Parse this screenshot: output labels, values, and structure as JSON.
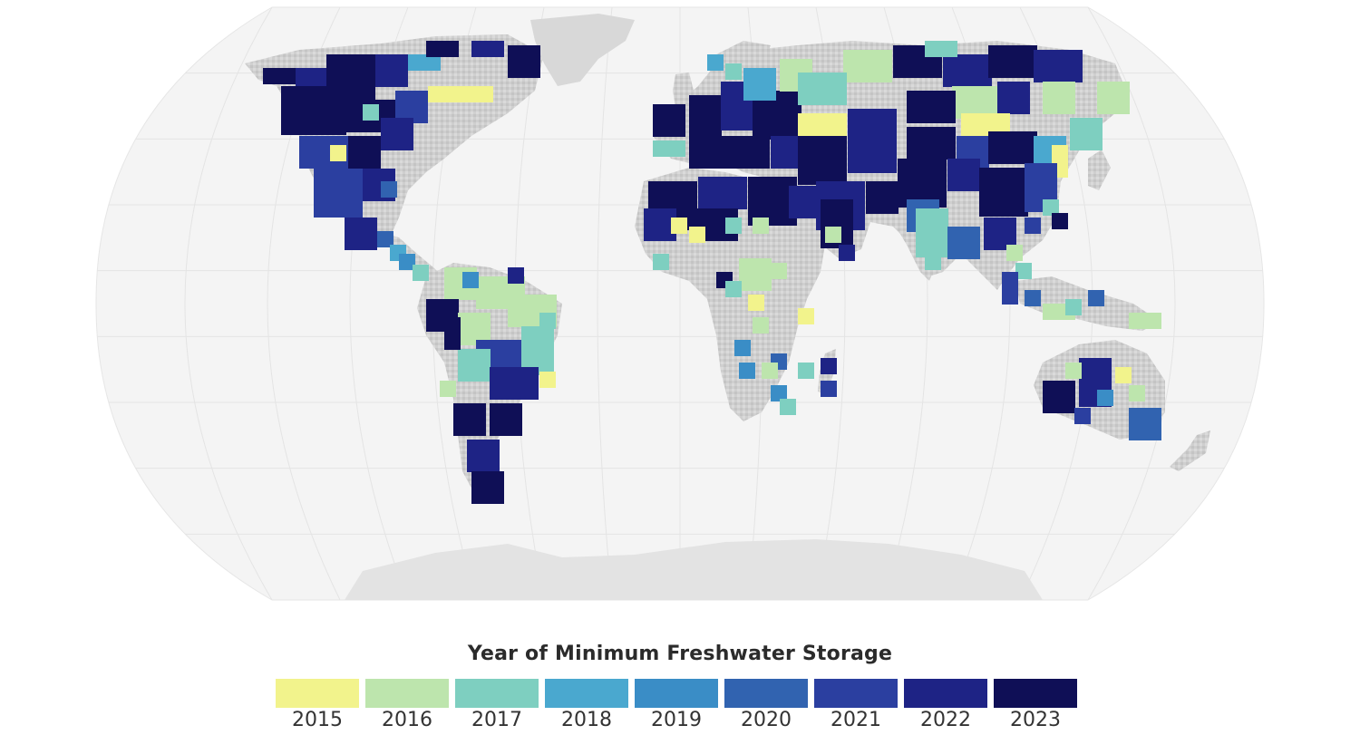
{
  "legend": {
    "title": "Year of Minimum Freshwater Storage",
    "items": [
      {
        "year": "2015",
        "color": "#f2f38c"
      },
      {
        "year": "2016",
        "color": "#bde5ad"
      },
      {
        "year": "2017",
        "color": "#7ecfc0"
      },
      {
        "year": "2018",
        "color": "#4aa8cf"
      },
      {
        "year": "2019",
        "color": "#3a8dc6"
      },
      {
        "year": "2020",
        "color": "#3163b0"
      },
      {
        "year": "2021",
        "color": "#2b3fa0"
      },
      {
        "year": "2022",
        "color": "#1e2385"
      },
      {
        "year": "2023",
        "color": "#0f0f56"
      }
    ]
  },
  "map": {
    "projection": "robinson",
    "ocean_color": "#f4f4f4",
    "land_color": "#d0d0d0",
    "ice_color": "#e3e3e3"
  }
}
